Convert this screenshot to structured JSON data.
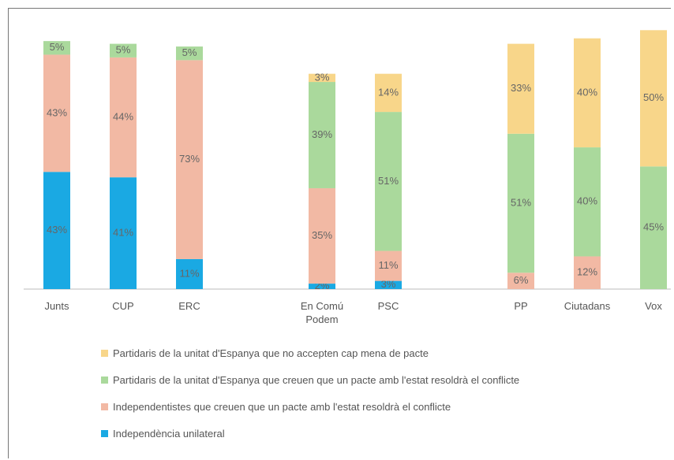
{
  "chart_data": {
    "type": "stacked_bar",
    "categories": [
      "Junts",
      "CUP",
      "ERC",
      null,
      "En Comú Podem",
      "PSC",
      null,
      "PP",
      "Ciutadans",
      "Vox"
    ],
    "series": [
      {
        "name": "Independència unilateral",
        "color": "#1aa9e3",
        "values": [
          43,
          41,
          11,
          null,
          2,
          3,
          null,
          null,
          null,
          null
        ],
        "value_labels": [
          "43%",
          "41%",
          "11%",
          null,
          "2%",
          "3%",
          null,
          null,
          null,
          null
        ]
      },
      {
        "name": "Independentistes que creuen que un pacte amb l'estat resoldrà el conflicte",
        "color": "#f2b9a4",
        "values": [
          43,
          44,
          73,
          null,
          35,
          11,
          null,
          6,
          12,
          null
        ],
        "value_labels": [
          "43%",
          "44%",
          "73%",
          null,
          "35%",
          "11%",
          null,
          "6%",
          "12%",
          null
        ]
      },
      {
        "name": "Partidaris de la unitat d'Espanya que creuen que un pacte amb l'estat resoldrà el conflicte",
        "color": "#aad99c",
        "values": [
          5,
          5,
          5,
          null,
          39,
          51,
          null,
          51,
          40,
          45
        ],
        "value_labels": [
          "5%",
          "5%",
          "5%",
          null,
          "39%",
          "51%",
          null,
          "51%",
          "40%",
          "45%"
        ]
      },
      {
        "name": "Partidaris de la unitat d'Espanya que no accepten cap mena de pacte",
        "color": "#f8d68a",
        "values": [
          null,
          null,
          null,
          null,
          3,
          14,
          null,
          33,
          40,
          50
        ],
        "value_labels": [
          null,
          null,
          null,
          null,
          "3%",
          "14%",
          null,
          "33%",
          "40%",
          "50%"
        ]
      }
    ],
    "legend": "bottom"
  }
}
